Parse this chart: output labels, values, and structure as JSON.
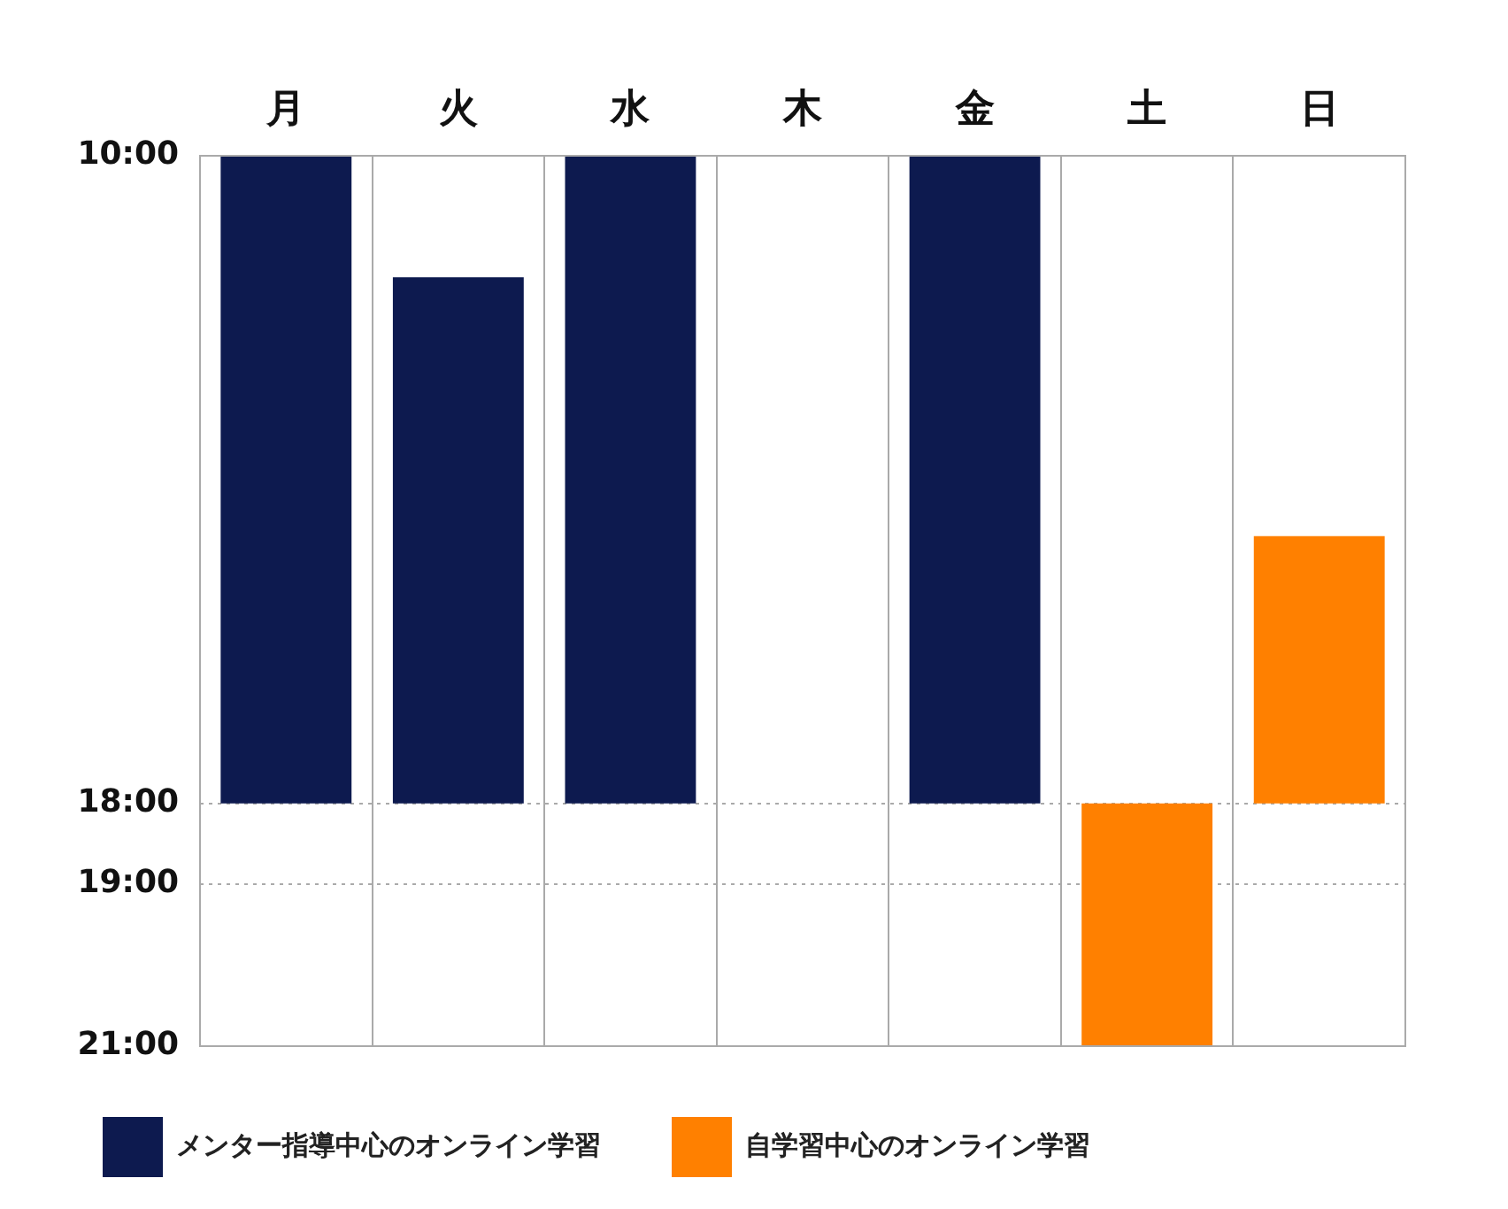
{
  "chart_data": {
    "type": "bar",
    "categories": [
      "月",
      "火",
      "水",
      "木",
      "金",
      "土",
      "日"
    ],
    "series": [
      {
        "name": "メンター指導中心のオンライン学習",
        "color": "#0d1a4f",
        "values": [
          8,
          6.5,
          8,
          null,
          8,
          null,
          null
        ],
        "base": [
          10,
          11.5,
          10,
          null,
          10,
          null,
          null
        ]
      },
      {
        "name": "自学習中心のオンライン学習",
        "color": "#ff8000",
        "values": [
          null,
          null,
          null,
          null,
          null,
          3,
          3.3
        ],
        "base": [
          null,
          null,
          null,
          null,
          null,
          18,
          14.7
        ]
      }
    ],
    "ylim": [
      21,
      10
    ],
    "yticks": [
      {
        "value": 10,
        "label": "10:00"
      },
      {
        "value": 18,
        "label": "18:00"
      },
      {
        "value": 19,
        "label": "19:00"
      },
      {
        "value": 21,
        "label": "21:00"
      }
    ],
    "grid": true,
    "legend": "bottom"
  }
}
